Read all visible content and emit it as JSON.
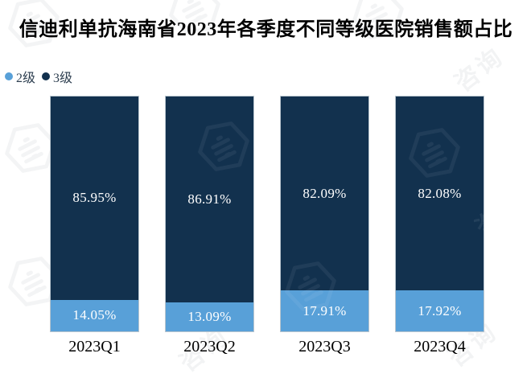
{
  "title": "信迪利单抗海南省2023年各季度不同等级医院销售额占比",
  "legend": {
    "items": [
      {
        "label": "2级",
        "color": "#58A0D8"
      },
      {
        "label": "3级",
        "color": "#12314E"
      }
    ]
  },
  "watermark": {
    "text": "咨询"
  },
  "chart_data": {
    "type": "bar",
    "stacked": true,
    "title": "信迪利单抗海南省2023年各季度不同等级医院销售额占比",
    "categories": [
      "2023Q1",
      "2023Q2",
      "2023Q3",
      "2023Q4"
    ],
    "series": [
      {
        "name": "2级",
        "color": "#58A0D8",
        "values": [
          14.05,
          13.09,
          17.91,
          17.92
        ],
        "labels": [
          "14.05%",
          "13.09%",
          "17.91%",
          "17.92%"
        ]
      },
      {
        "name": "3级",
        "color": "#12314E",
        "values": [
          85.95,
          86.91,
          82.09,
          82.08
        ],
        "labels": [
          "85.95%",
          "86.91%",
          "82.09%",
          "82.08%"
        ]
      }
    ],
    "unit": "%",
    "ylim": [
      0,
      100
    ],
    "grid": false,
    "axis_lines": false,
    "legend_position": "top-left",
    "value_label_color": "#FFFFFF",
    "xlabel": "",
    "ylabel": ""
  }
}
